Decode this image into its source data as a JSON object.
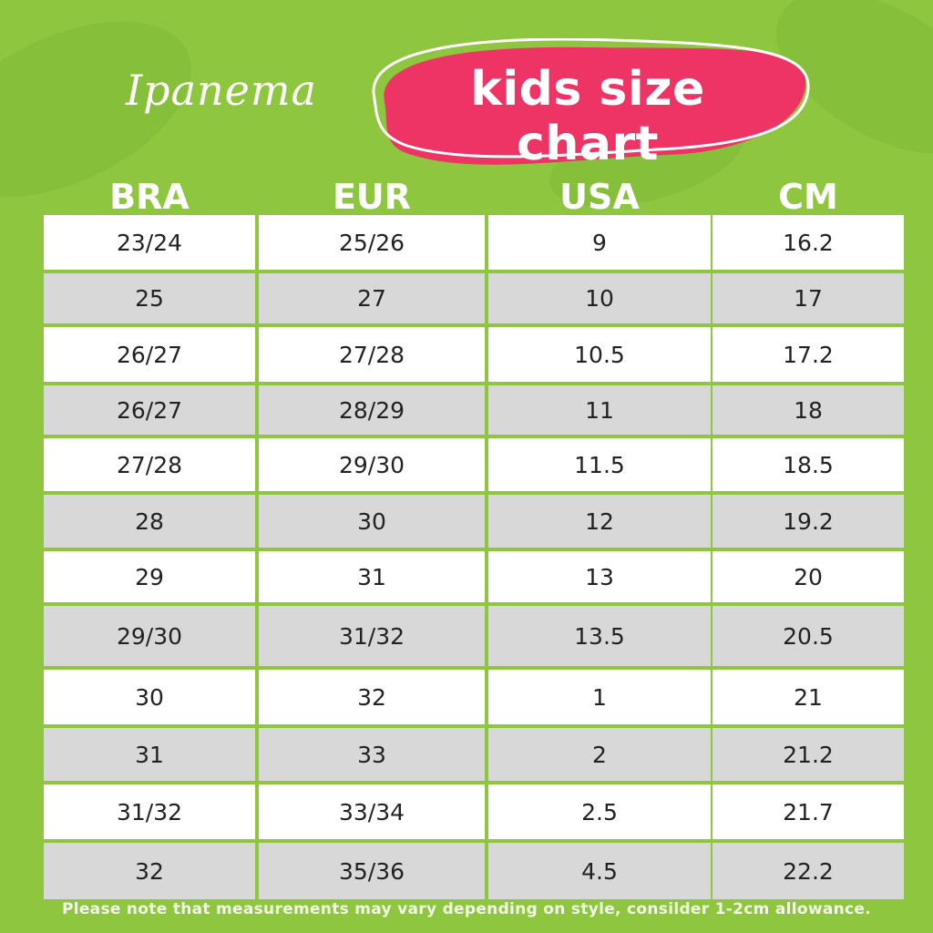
{
  "brand": "Ipanema",
  "title": "kids size chart",
  "colors": {
    "background": "#8ec63f",
    "badge": "#ee3464",
    "row_alt": "#d8d8d8"
  },
  "table": {
    "headers": [
      "BRA",
      "EUR",
      "USA",
      "CM"
    ],
    "rows": [
      [
        "23/24",
        "25/26",
        "9",
        "16.2"
      ],
      [
        "25",
        "27",
        "10",
        "17"
      ],
      [
        "26/27",
        "27/28",
        "10.5",
        "17.2"
      ],
      [
        "26/27",
        "28/29",
        "11",
        "18"
      ],
      [
        "27/28",
        "29/30",
        "11.5",
        "18.5"
      ],
      [
        "28",
        "30",
        "12",
        "19.2"
      ],
      [
        "29",
        "31",
        "13",
        "20"
      ],
      [
        "29/30",
        "31/32",
        "13.5",
        "20.5"
      ],
      [
        "30",
        "32",
        "1",
        "21"
      ],
      [
        "31",
        "33",
        "2",
        "21.2"
      ],
      [
        "31/32",
        "33/34",
        "2.5",
        "21.7"
      ],
      [
        "32",
        "35/36",
        "4.5",
        "22.2"
      ]
    ]
  },
  "footnote": "Please note that measurements may vary depending on style, consilder 1-2cm allowance."
}
